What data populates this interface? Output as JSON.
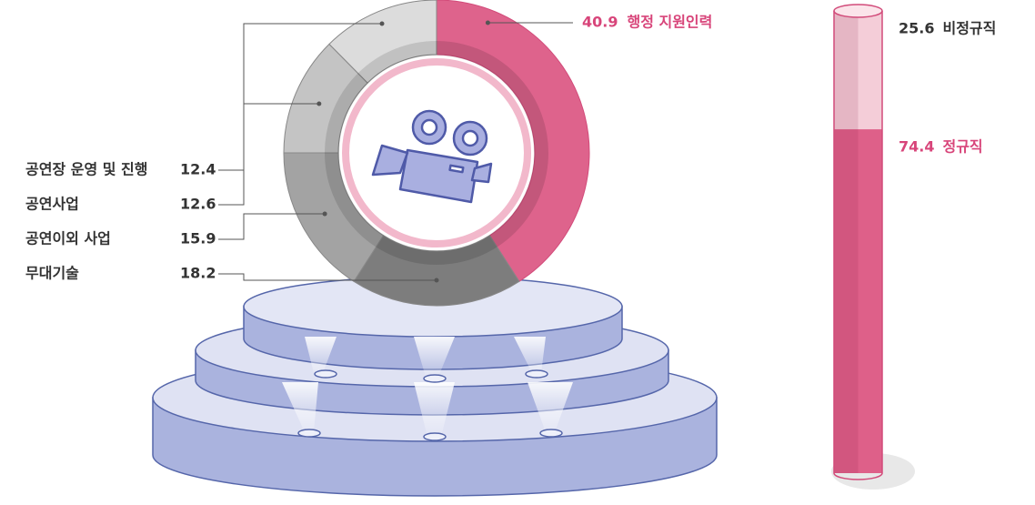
{
  "chart_data": [
    {
      "type": "donut",
      "categories": [
        "행정 지원인력",
        "무대기술",
        "공연이외 사업",
        "공연사업",
        "공연장 운영 및 진행"
      ],
      "values": [
        40.9,
        18.2,
        15.9,
        12.6,
        12.4
      ],
      "colors": [
        "#de638c",
        "#7d7d7d",
        "#a3a3a3",
        "#c4c4c4",
        "#dcdcdc"
      ]
    },
    {
      "type": "stacked-bar",
      "series": [
        {
          "name": "정규직",
          "color": "#de6089",
          "values": [
            74.4
          ]
        },
        {
          "name": "비정규직",
          "color": "#f4cdd8",
          "values": [
            25.6
          ]
        }
      ]
    }
  ]
}
